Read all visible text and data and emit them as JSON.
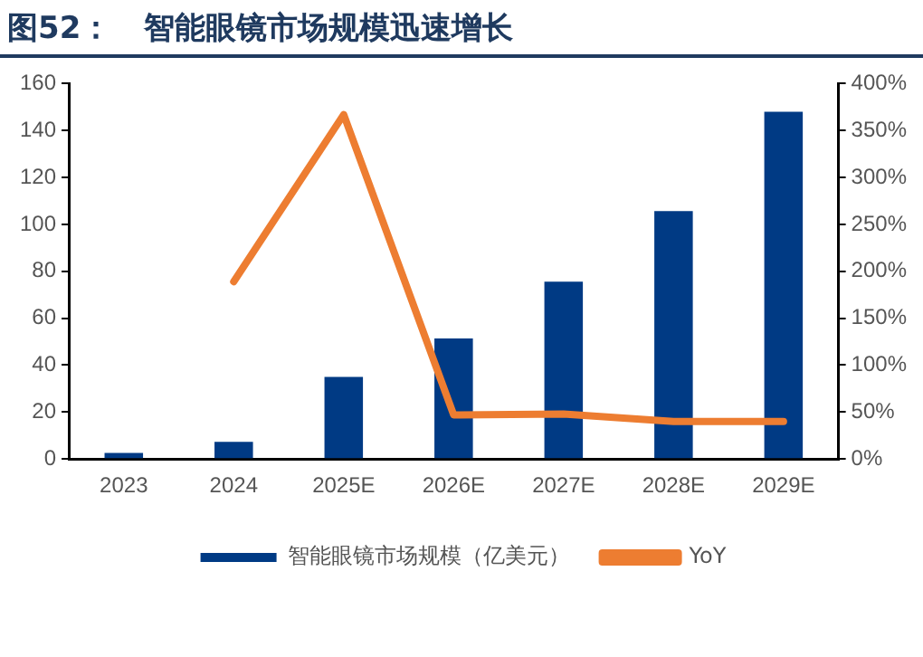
{
  "chart_data": {
    "type": "bar",
    "title": "图52：   智能眼镜市场规模迅速增长",
    "categories": [
      "2023",
      "2024",
      "2025E",
      "2026E",
      "2027E",
      "2028E",
      "2029E"
    ],
    "series": [
      {
        "name": "智能眼镜市场规模（亿美元）",
        "color": "#003a84",
        "values": [
          2.6,
          7.3,
          35,
          51.4,
          75.6,
          105.7,
          148
        ]
      },
      {
        "name": "YoY",
        "type": "line",
        "axis": "y2",
        "color": "#ed7d31",
        "values": [
          null,
          189,
          367,
          47,
          48,
          40,
          40
        ]
      }
    ],
    "ylim": [
      0,
      160
    ],
    "yticks": [
      0,
      20,
      40,
      60,
      80,
      100,
      120,
      140,
      160
    ],
    "y2lim": [
      0,
      400
    ],
    "y2ticks": [
      {
        "value": 0,
        "label": "0%"
      },
      {
        "value": 50,
        "label": "50%"
      },
      {
        "value": 100,
        "label": "100%"
      },
      {
        "value": 150,
        "label": "150%"
      },
      {
        "value": 200,
        "label": "200%"
      },
      {
        "value": 250,
        "label": "250%"
      },
      {
        "value": 300,
        "label": "300%"
      },
      {
        "value": 350,
        "label": "350%"
      },
      {
        "value": 400,
        "label": "400%"
      }
    ],
    "grid": false,
    "legend": "bottom",
    "marker": "none",
    "line_style": "solid"
  }
}
